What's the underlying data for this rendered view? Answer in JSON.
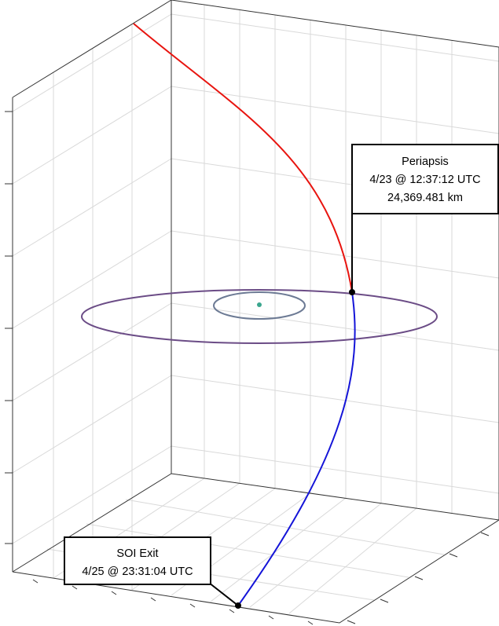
{
  "annotations": [
    {
      "lines": [
        "Periapsis",
        "4/23 @ 12:37:12 UTC",
        "24,369.481 km"
      ]
    },
    {
      "lines": [
        "SOI Exit",
        "4/25 @ 23:31:04 UTC"
      ]
    }
  ]
}
